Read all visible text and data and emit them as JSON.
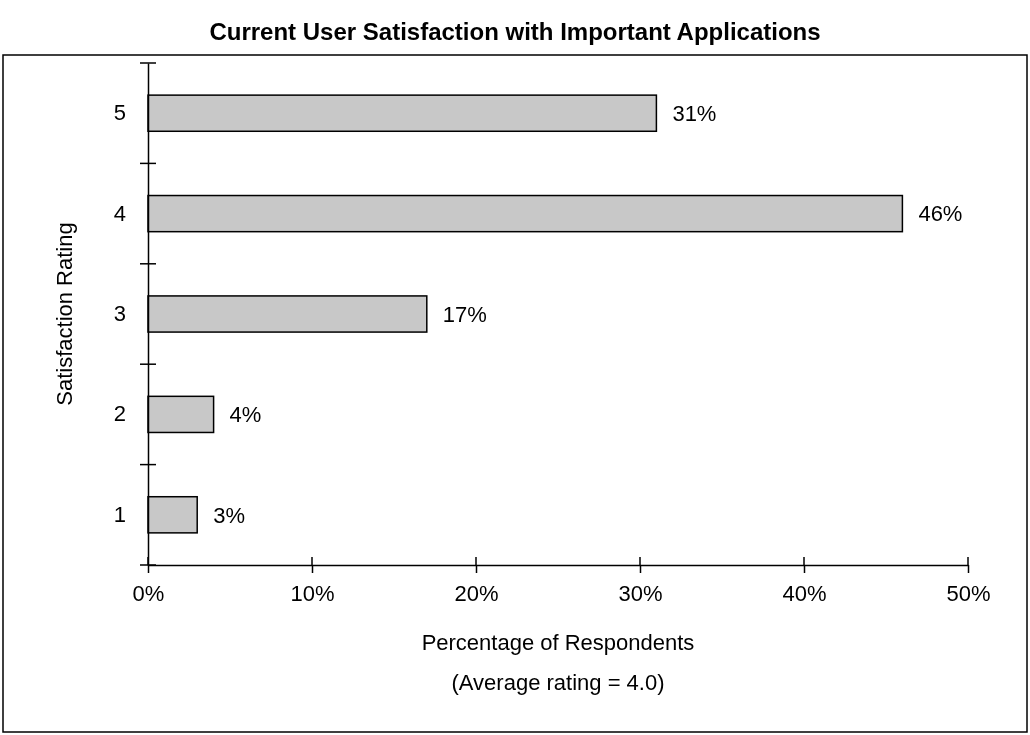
{
  "chart_data": {
    "type": "bar",
    "orientation": "horizontal",
    "title": "Current User Satisfaction with Important Applications",
    "ylabel": "Satisfaction Rating",
    "xlabel": "Percentage of Respondents",
    "annotations": [
      "(Average rating = 4.0)"
    ],
    "categories": [
      "5",
      "4",
      "3",
      "2",
      "1"
    ],
    "values": [
      31,
      46,
      17,
      4,
      3
    ],
    "value_labels": [
      "31%",
      "46%",
      "17%",
      "4%",
      "3%"
    ],
    "color": "#c8c8c8",
    "xlim": [
      0,
      50
    ],
    "xticks": [
      {
        "value": 0,
        "label": "0%"
      },
      {
        "value": 10,
        "label": "10%"
      },
      {
        "value": 20,
        "label": "20%"
      },
      {
        "value": 30,
        "label": "30%"
      },
      {
        "value": 40,
        "label": "40%"
      },
      {
        "value": 50,
        "label": "50%"
      }
    ],
    "grid": false
  }
}
